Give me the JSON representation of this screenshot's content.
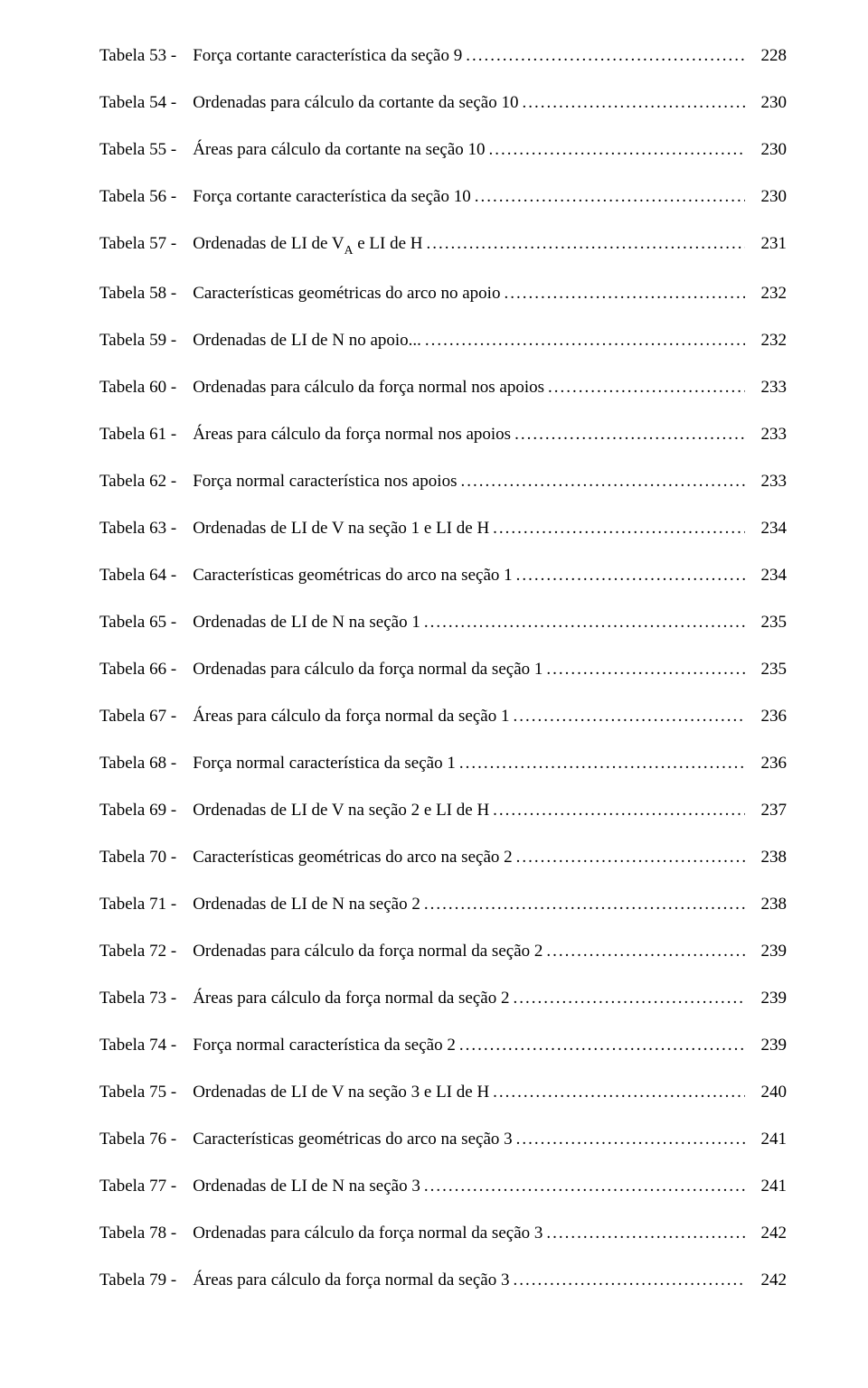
{
  "font_family": "Times New Roman",
  "font_size_pt": 14,
  "text_color": "#000000",
  "background_color": "#ffffff",
  "leader_char": ".",
  "entries": [
    {
      "label": "Tabela 53 -",
      "desc": "Força cortante característica da seção 9",
      "page": "228"
    },
    {
      "label": "Tabela 54 -",
      "desc": "Ordenadas para cálculo da cortante da seção 10",
      "page": "230"
    },
    {
      "label": "Tabela 55 -",
      "desc": "Áreas para cálculo da cortante na seção 10",
      "page": "230"
    },
    {
      "label": "Tabela 56 -",
      "desc": "Força cortante característica da seção 10",
      "page": "230"
    },
    {
      "label": "Tabela 57 -",
      "desc": "Ordenadas de LI de V<span class=\"sub\">A</span> e LI de H",
      "page": "231"
    },
    {
      "label": "Tabela 58 -",
      "desc": "Características geométricas do arco no apoio",
      "page": "232"
    },
    {
      "label": "Tabela 59 -",
      "desc": "Ordenadas de LI de N no apoio...",
      "page": "232"
    },
    {
      "label": "Tabela 60 -",
      "desc": "Ordenadas para cálculo da força normal nos apoios",
      "page": "233"
    },
    {
      "label": "Tabela 61 -",
      "desc": "Áreas para cálculo da força normal nos apoios",
      "page": "233"
    },
    {
      "label": "Tabela 62 -",
      "desc": "Força normal característica nos apoios",
      "page": "233"
    },
    {
      "label": "Tabela 63 -",
      "desc": "Ordenadas de LI de V na seção 1 e LI de H",
      "page": "234"
    },
    {
      "label": "Tabela 64 -",
      "desc": "Características geométricas do arco na seção 1",
      "page": "234"
    },
    {
      "label": "Tabela 65 -",
      "desc": "Ordenadas de LI de N na seção 1",
      "page": "235"
    },
    {
      "label": "Tabela 66 -",
      "desc": "Ordenadas para cálculo da força normal da seção 1",
      "page": "235"
    },
    {
      "label": "Tabela 67 -",
      "desc": "Áreas para cálculo da força normal da seção 1",
      "page": "236"
    },
    {
      "label": "Tabela 68 -",
      "desc": "Força normal característica da seção 1",
      "page": "236"
    },
    {
      "label": "Tabela 69 -",
      "desc": "Ordenadas de LI de V na seção 2 e LI de H",
      "page": "237"
    },
    {
      "label": "Tabela 70 -",
      "desc": "Características geométricas do arco na seção 2",
      "page": "238"
    },
    {
      "label": "Tabela 71 -",
      "desc": "Ordenadas de LI de N na seção 2",
      "page": "238"
    },
    {
      "label": "Tabela 72 -",
      "desc": "Ordenadas para cálculo da força normal da seção 2",
      "page": "239"
    },
    {
      "label": "Tabela 73 -",
      "desc": "Áreas para cálculo da força normal da seção 2",
      "page": "239"
    },
    {
      "label": "Tabela 74 -",
      "desc": "Força normal característica da seção 2",
      "page": "239"
    },
    {
      "label": "Tabela 75 -",
      "desc": "Ordenadas de LI de V na seção 3 e LI de H",
      "page": "240"
    },
    {
      "label": "Tabela 76 -",
      "desc": "Características geométricas do arco na seção 3",
      "page": "241"
    },
    {
      "label": "Tabela 77 -",
      "desc": "Ordenadas de LI de N na seção 3",
      "page": "241"
    },
    {
      "label": "Tabela 78 -",
      "desc": "Ordenadas para cálculo da força normal da seção 3",
      "page": "242"
    },
    {
      "label": "Tabela 79 -",
      "desc": "Áreas para cálculo da força normal da seção 3",
      "page": "242"
    }
  ]
}
